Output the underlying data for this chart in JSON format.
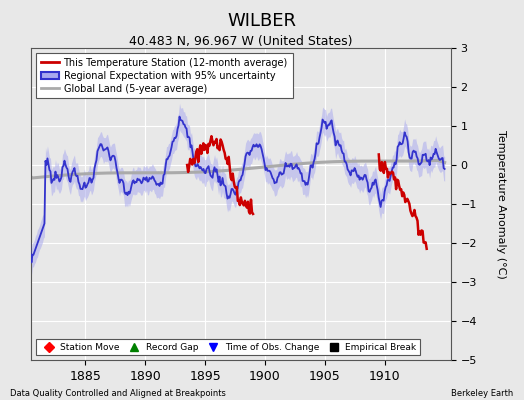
{
  "title": "WILBER",
  "subtitle": "40.483 N, 96.967 W (United States)",
  "ylabel": "Temperature Anomaly (°C)",
  "xlabel_left": "Data Quality Controlled and Aligned at Breakpoints",
  "xlabel_right": "Berkeley Earth",
  "xlim": [
    1880.5,
    1915.5
  ],
  "ylim": [
    -5,
    3
  ],
  "yticks": [
    -5,
    -4,
    -3,
    -2,
    -1,
    0,
    1,
    2,
    3
  ],
  "xticks": [
    1885,
    1890,
    1895,
    1900,
    1905,
    1910
  ],
  "bg_color": "#e8e8e8",
  "plot_bg_color": "#e8e8e8",
  "grid_color": "white",
  "regional_color": "#3333cc",
  "regional_band_color": "#aaaaee",
  "station_color": "#cc0000",
  "global_color": "#aaaaaa",
  "legend_entries": [
    {
      "label": "This Temperature Station (12-month average)",
      "color": "#cc0000"
    },
    {
      "label": "Regional Expectation with 95% uncertainty",
      "color": "#3333cc"
    },
    {
      "label": "Global Land (5-year average)",
      "color": "#aaaaaa"
    }
  ],
  "marker_legend": [
    {
      "label": "Station Move",
      "color": "red",
      "marker": "D"
    },
    {
      "label": "Record Gap",
      "color": "green",
      "marker": "^"
    },
    {
      "label": "Time of Obs. Change",
      "color": "blue",
      "marker": "v"
    },
    {
      "label": "Empirical Break",
      "color": "black",
      "marker": "s"
    }
  ],
  "seed": 7
}
